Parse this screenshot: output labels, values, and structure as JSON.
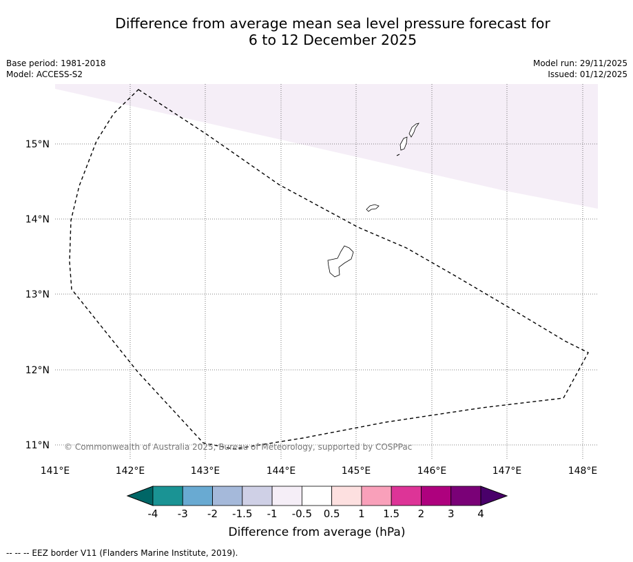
{
  "title": {
    "line1": "Difference from average mean sea level pressure forecast for",
    "line2": "6 to 12 December 2025"
  },
  "meta": {
    "base_period": "Base period: 1981-2018",
    "model": "Model: ACCESS-S2",
    "model_run": "Model run: 29/11/2025",
    "issued": "Issued: 01/12/2025"
  },
  "map": {
    "lon_labels": [
      "141°E",
      "142°E",
      "143°E",
      "144°E",
      "145°E",
      "146°E",
      "147°E",
      "148°E"
    ],
    "lat_labels": [
      "15°N",
      "14°N",
      "13°N",
      "12°N",
      "11°N"
    ],
    "copyright": "© Commonwealth of Australia 2025, Bureau of Meteorology, supported by COSPPac"
  },
  "colorbar": {
    "ticks": [
      "-4",
      "-3",
      "-2",
      "-1.5",
      "-1",
      "-0.5",
      "0.5",
      "1",
      "1.5",
      "2",
      "3",
      "4"
    ],
    "colors": {
      "low_extend": "#006666",
      "bins": [
        "#1a9394",
        "#69aad2",
        "#a5b9da",
        "#cfd0e6",
        "#f5eef7",
        "#ffffff",
        "#fde0e0",
        "#f9a0ba",
        "#dd3497",
        "#ae017e",
        "#7a0177"
      ],
      "high_extend": "#49006a"
    },
    "label": "Difference from average (hPa)"
  },
  "legend_note": "--  --  -- EEZ border V11 (Flanders Marine Institute, 2019)."
}
